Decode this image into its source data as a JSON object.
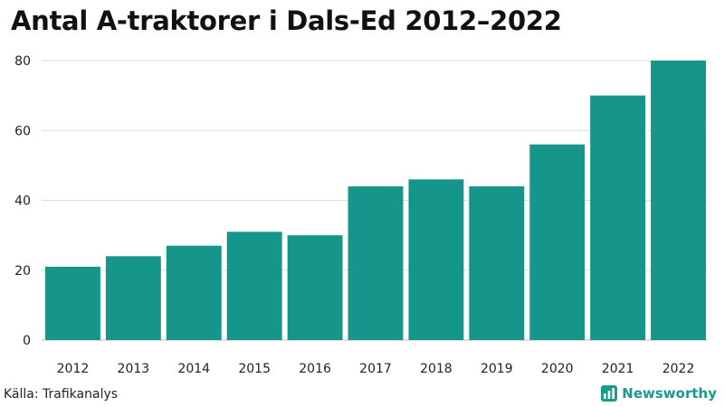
{
  "chart_data": {
    "type": "bar",
    "title": "Antal A-traktorer i Dals-Ed 2012–2022",
    "categories": [
      "2012",
      "2013",
      "2014",
      "2015",
      "2016",
      "2017",
      "2018",
      "2019",
      "2020",
      "2021",
      "2022"
    ],
    "values": [
      21,
      24,
      27,
      31,
      30,
      44,
      46,
      44,
      56,
      70,
      80
    ],
    "xlabel": "",
    "ylabel": "",
    "ylim": [
      0,
      80
    ],
    "yticks": [
      0,
      20,
      40,
      60,
      80
    ],
    "grid": true,
    "bar_color": "#16968a"
  },
  "footer": {
    "source": "Källa: Trafikanalys",
    "brand": "Newsworthy",
    "brand_color": "#1a9a8e"
  }
}
